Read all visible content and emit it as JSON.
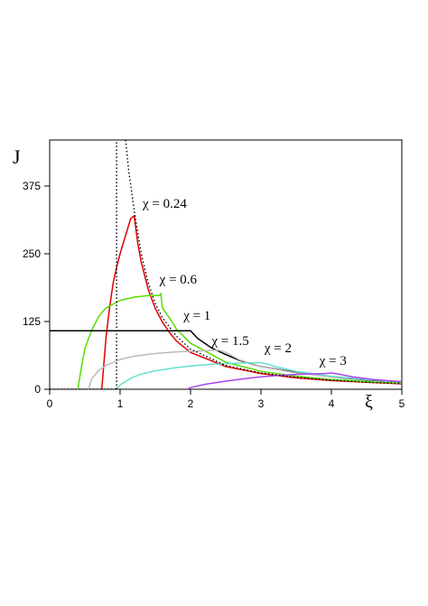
{
  "chart_data": {
    "type": "line",
    "xlabel": "ξ",
    "ylabel": "J",
    "xlim": [
      0,
      5
    ],
    "ylim": [
      0,
      460
    ],
    "x_ticks": [
      "0",
      "1",
      "2",
      "3",
      "4",
      "5"
    ],
    "y_ticks": [
      "0",
      "125",
      "250",
      "375"
    ],
    "grid": false,
    "legend": "none",
    "series": [
      {
        "color": "#e00000",
        "annotation": "χ = 0.24",
        "style": "solid",
        "x": [
          0.74,
          0.8,
          0.85,
          0.9,
          0.95,
          1.0,
          1.05,
          1.1,
          1.15,
          1.2,
          1.25,
          1.3,
          1.4,
          1.5,
          1.6,
          1.7,
          1.8,
          2.0,
          2.5,
          3.0,
          3.5,
          4.0,
          4.5,
          5.0
        ],
        "y": [
          0,
          95,
          150,
          195,
          225,
          250,
          272,
          293,
          315,
          320,
          270,
          235,
          184,
          149,
          124,
          105,
          89,
          68,
          42,
          29,
          21,
          16,
          13,
          10
        ]
      },
      {
        "color": "#55dd00",
        "annotation": "χ = 0.6",
        "style": "solid",
        "x": [
          0.4,
          0.45,
          0.5,
          0.6,
          0.7,
          0.8,
          1.0,
          1.2,
          1.4,
          1.55,
          1.58,
          1.6,
          1.7,
          1.8,
          2.0,
          2.5,
          3.0,
          3.5,
          4.0,
          4.5,
          5.0
        ],
        "y": [
          0,
          40,
          75,
          110,
          135,
          150,
          164,
          170,
          173,
          173,
          176,
          150,
          132,
          111,
          85,
          50,
          33,
          24,
          18,
          14,
          11
        ]
      },
      {
        "color": "#000000",
        "annotation": "χ = 1",
        "style": "solid",
        "x": [
          0.0,
          0.95,
          1.0,
          1.5,
          1.9,
          2.0,
          2.1,
          2.2,
          2.3,
          2.5,
          2.7,
          3.0,
          3.5,
          4.0,
          4.5,
          5.0
        ],
        "y": [
          108,
          108,
          108,
          108,
          108,
          108,
          94,
          85,
          76,
          64,
          53,
          42,
          31,
          23,
          17,
          14
        ]
      },
      {
        "color": "#bbbbbb",
        "annotation": "χ = 1.5",
        "style": "solid",
        "x": [
          0.55,
          0.6,
          0.7,
          0.8,
          1.0,
          1.2,
          1.5,
          1.8,
          2.0,
          2.2,
          2.4,
          2.5,
          2.6,
          2.7,
          3.0,
          3.5,
          4.0,
          4.5,
          5.0
        ],
        "y": [
          0,
          20,
          35,
          44,
          55,
          61,
          66,
          69,
          70,
          71,
          72,
          68,
          61,
          54,
          42,
          30,
          23,
          18,
          14
        ]
      },
      {
        "color": "#66e0d0",
        "annotation": "χ = 2",
        "style": "solid",
        "x": [
          0.95,
          1.0,
          1.1,
          1.2,
          1.3,
          1.5,
          1.8,
          2.0,
          2.3,
          2.6,
          2.9,
          3.0,
          3.1,
          3.2,
          3.5,
          4.0,
          4.5,
          5.0
        ],
        "y": [
          0,
          8,
          16,
          23,
          28,
          34,
          40,
          43,
          46,
          48,
          49,
          49,
          46,
          42,
          33,
          24,
          18,
          14
        ]
      },
      {
        "color": "#aa44ee",
        "annotation": "χ = 3",
        "style": "solid",
        "x": [
          1.95,
          2.0,
          2.2,
          2.5,
          2.8,
          3.0,
          3.3,
          3.6,
          3.9,
          4.0,
          4.1,
          4.3,
          4.6,
          5.0
        ],
        "y": [
          0,
          3,
          9,
          15,
          20,
          23,
          26,
          28,
          29,
          30,
          28,
          23,
          18,
          14
        ]
      },
      {
        "color": "#000000",
        "style": "dotted",
        "x": [
          1.08,
          1.12,
          1.2,
          1.3,
          1.4,
          1.5,
          1.6,
          1.8,
          2.0,
          2.5,
          3.0,
          3.5,
          4.0,
          4.5,
          5.0
        ],
        "y": [
          460,
          405,
          330,
          250,
          196,
          158,
          132,
          98,
          74,
          44,
          30,
          22,
          17,
          13,
          11
        ]
      },
      {
        "color": "#000000",
        "style": "dotted",
        "x": [
          0.95,
          0.95
        ],
        "y": [
          0,
          460
        ]
      },
      {
        "color": "#000000",
        "style": "dotted",
        "x": [
          0.0,
          0.95
        ],
        "y": [
          0,
          0
        ]
      }
    ],
    "annotations": [
      {
        "text": "χ = 0.24",
        "x": 1.32,
        "y": 335
      },
      {
        "text": "χ = 0.6",
        "x": 1.56,
        "y": 195
      },
      {
        "text": "χ = 1",
        "x": 1.9,
        "y": 128
      },
      {
        "text": "χ = 1.5",
        "x": 2.3,
        "y": 82
      },
      {
        "text": "χ = 2",
        "x": 3.05,
        "y": 68
      },
      {
        "text": "χ = 3",
        "x": 3.83,
        "y": 45
      }
    ]
  }
}
